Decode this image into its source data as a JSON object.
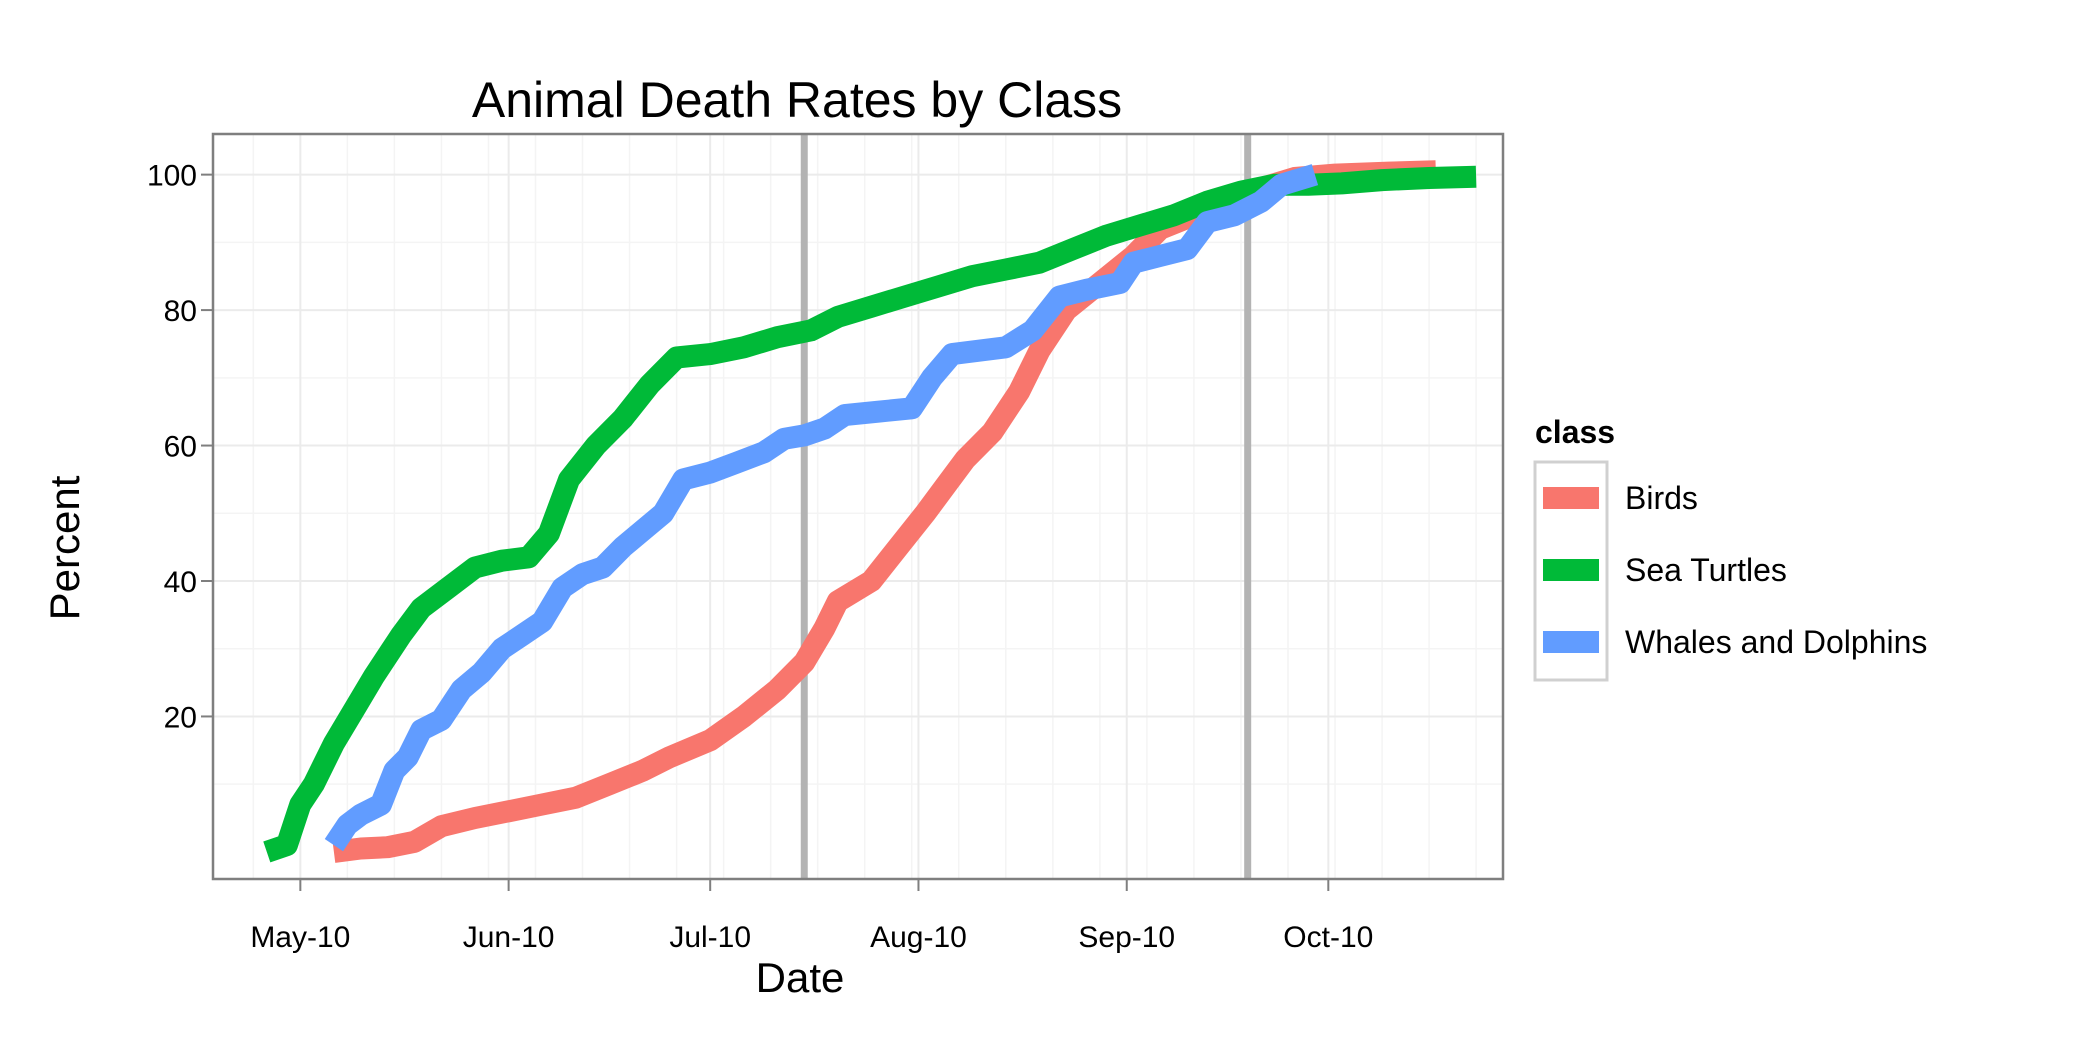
{
  "chart_data": {
    "type": "line",
    "title": "Animal Death Rates by Class",
    "xlabel": "Date",
    "ylabel": "Percent",
    "x_type": "date",
    "xlim": [
      "2010-04-18",
      "2010-10-27"
    ],
    "ylim": [
      -4,
      106
    ],
    "x_tick_labels": [
      {
        "date": "2010-05-01",
        "label": "May-10"
      },
      {
        "date": "2010-06-01",
        "label": "Jun-10"
      },
      {
        "date": "2010-07-01",
        "label": "Jul-10"
      },
      {
        "date": "2010-08-01",
        "label": "Aug-10"
      },
      {
        "date": "2010-09-01",
        "label": "Sep-10"
      },
      {
        "date": "2010-10-01",
        "label": "Oct-10"
      }
    ],
    "y_ticks": [
      20,
      40,
      60,
      80,
      100
    ],
    "grid": true,
    "vertical_reference_lines": [
      "2010-07-15",
      "2010-09-19"
    ],
    "reference_line_color": "#b3b3b3",
    "legend_title": "class",
    "legend_position": "right",
    "series": [
      {
        "name": "Birds",
        "color": "#f8766d",
        "points": [
          [
            "2010-05-06",
            0
          ],
          [
            "2010-05-10",
            0.5
          ],
          [
            "2010-05-14",
            0.7
          ],
          [
            "2010-05-18",
            1.5
          ],
          [
            "2010-05-22",
            3.8
          ],
          [
            "2010-05-27",
            5
          ],
          [
            "2010-06-01",
            6
          ],
          [
            "2010-06-06",
            7
          ],
          [
            "2010-06-11",
            8
          ],
          [
            "2010-06-16",
            10
          ],
          [
            "2010-06-21",
            12
          ],
          [
            "2010-06-25",
            14
          ],
          [
            "2010-07-01",
            16.5
          ],
          [
            "2010-07-06",
            20
          ],
          [
            "2010-07-11",
            24
          ],
          [
            "2010-07-15",
            28
          ],
          [
            "2010-07-18",
            33
          ],
          [
            "2010-07-20",
            37
          ],
          [
            "2010-07-25",
            40
          ],
          [
            "2010-07-29",
            45
          ],
          [
            "2010-08-02",
            50
          ],
          [
            "2010-08-05",
            54
          ],
          [
            "2010-08-08",
            58
          ],
          [
            "2010-08-12",
            62
          ],
          [
            "2010-08-16",
            68
          ],
          [
            "2010-08-19",
            74
          ],
          [
            "2010-08-23",
            80
          ],
          [
            "2010-08-28",
            84
          ],
          [
            "2010-09-02",
            88
          ],
          [
            "2010-09-06",
            92
          ],
          [
            "2010-09-11",
            94
          ],
          [
            "2010-09-16",
            96
          ],
          [
            "2010-09-21",
            98
          ],
          [
            "2010-09-26",
            99.5
          ],
          [
            "2010-10-02",
            100
          ],
          [
            "2010-10-10",
            100.3
          ],
          [
            "2010-10-17",
            100.5
          ]
        ]
      },
      {
        "name": "Sea Turtles",
        "color": "#00ba38",
        "points": [
          [
            "2010-04-26",
            0
          ],
          [
            "2010-04-29",
            1
          ],
          [
            "2010-05-01",
            7
          ],
          [
            "2010-05-03",
            10
          ],
          [
            "2010-05-06",
            16
          ],
          [
            "2010-05-09",
            21
          ],
          [
            "2010-05-12",
            26
          ],
          [
            "2010-05-16",
            32
          ],
          [
            "2010-05-19",
            36
          ],
          [
            "2010-05-23",
            39
          ],
          [
            "2010-05-27",
            42
          ],
          [
            "2010-05-31",
            43
          ],
          [
            "2010-06-04",
            43.5
          ],
          [
            "2010-06-07",
            47
          ],
          [
            "2010-06-10",
            55
          ],
          [
            "2010-06-14",
            60
          ],
          [
            "2010-06-18",
            64
          ],
          [
            "2010-06-22",
            69
          ],
          [
            "2010-06-26",
            73
          ],
          [
            "2010-07-01",
            73.5
          ],
          [
            "2010-07-06",
            74.5
          ],
          [
            "2010-07-11",
            76
          ],
          [
            "2010-07-16",
            77
          ],
          [
            "2010-07-20",
            79
          ],
          [
            "2010-07-25",
            80.5
          ],
          [
            "2010-07-30",
            82
          ],
          [
            "2010-08-04",
            83.5
          ],
          [
            "2010-08-09",
            85
          ],
          [
            "2010-08-14",
            86
          ],
          [
            "2010-08-19",
            87
          ],
          [
            "2010-08-24",
            89
          ],
          [
            "2010-08-29",
            91
          ],
          [
            "2010-09-03",
            92.5
          ],
          [
            "2010-09-08",
            94
          ],
          [
            "2010-09-13",
            96
          ],
          [
            "2010-09-18",
            97.5
          ],
          [
            "2010-09-23",
            98.5
          ],
          [
            "2010-09-28",
            98.5
          ],
          [
            "2010-10-03",
            98.7
          ],
          [
            "2010-10-09",
            99.2
          ],
          [
            "2010-10-16",
            99.5
          ],
          [
            "2010-10-23",
            99.7
          ]
        ]
      },
      {
        "name": "Whales and Dolphins",
        "color": "#619cff",
        "points": [
          [
            "2010-05-06",
            1
          ],
          [
            "2010-05-08",
            4
          ],
          [
            "2010-05-10",
            5.5
          ],
          [
            "2010-05-13",
            7
          ],
          [
            "2010-05-15",
            12
          ],
          [
            "2010-05-17",
            14
          ],
          [
            "2010-05-19",
            18
          ],
          [
            "2010-05-22",
            19.5
          ],
          [
            "2010-05-25",
            24
          ],
          [
            "2010-05-28",
            26.5
          ],
          [
            "2010-05-31",
            30
          ],
          [
            "2010-06-03",
            32
          ],
          [
            "2010-06-06",
            34
          ],
          [
            "2010-06-09",
            39
          ],
          [
            "2010-06-12",
            41
          ],
          [
            "2010-06-15",
            42
          ],
          [
            "2010-06-18",
            45
          ],
          [
            "2010-06-21",
            47.5
          ],
          [
            "2010-06-24",
            50
          ],
          [
            "2010-06-27",
            55
          ],
          [
            "2010-07-01",
            56
          ],
          [
            "2010-07-05",
            57.5
          ],
          [
            "2010-07-09",
            59
          ],
          [
            "2010-07-12",
            61
          ],
          [
            "2010-07-15",
            61.5
          ],
          [
            "2010-07-18",
            62.5
          ],
          [
            "2010-07-21",
            64.5
          ],
          [
            "2010-07-26",
            65
          ],
          [
            "2010-07-31",
            65.5
          ],
          [
            "2010-08-03",
            70
          ],
          [
            "2010-08-06",
            73.5
          ],
          [
            "2010-08-10",
            74
          ],
          [
            "2010-08-14",
            74.5
          ],
          [
            "2010-08-18",
            77
          ],
          [
            "2010-08-22",
            82
          ],
          [
            "2010-08-26",
            83
          ],
          [
            "2010-08-31",
            84
          ],
          [
            "2010-09-02",
            87
          ],
          [
            "2010-09-06",
            88
          ],
          [
            "2010-09-10",
            89
          ],
          [
            "2010-09-13",
            93
          ],
          [
            "2010-09-17",
            94
          ],
          [
            "2010-09-21",
            96
          ],
          [
            "2010-09-24",
            98.5
          ],
          [
            "2010-09-29",
            100
          ]
        ]
      }
    ]
  }
}
